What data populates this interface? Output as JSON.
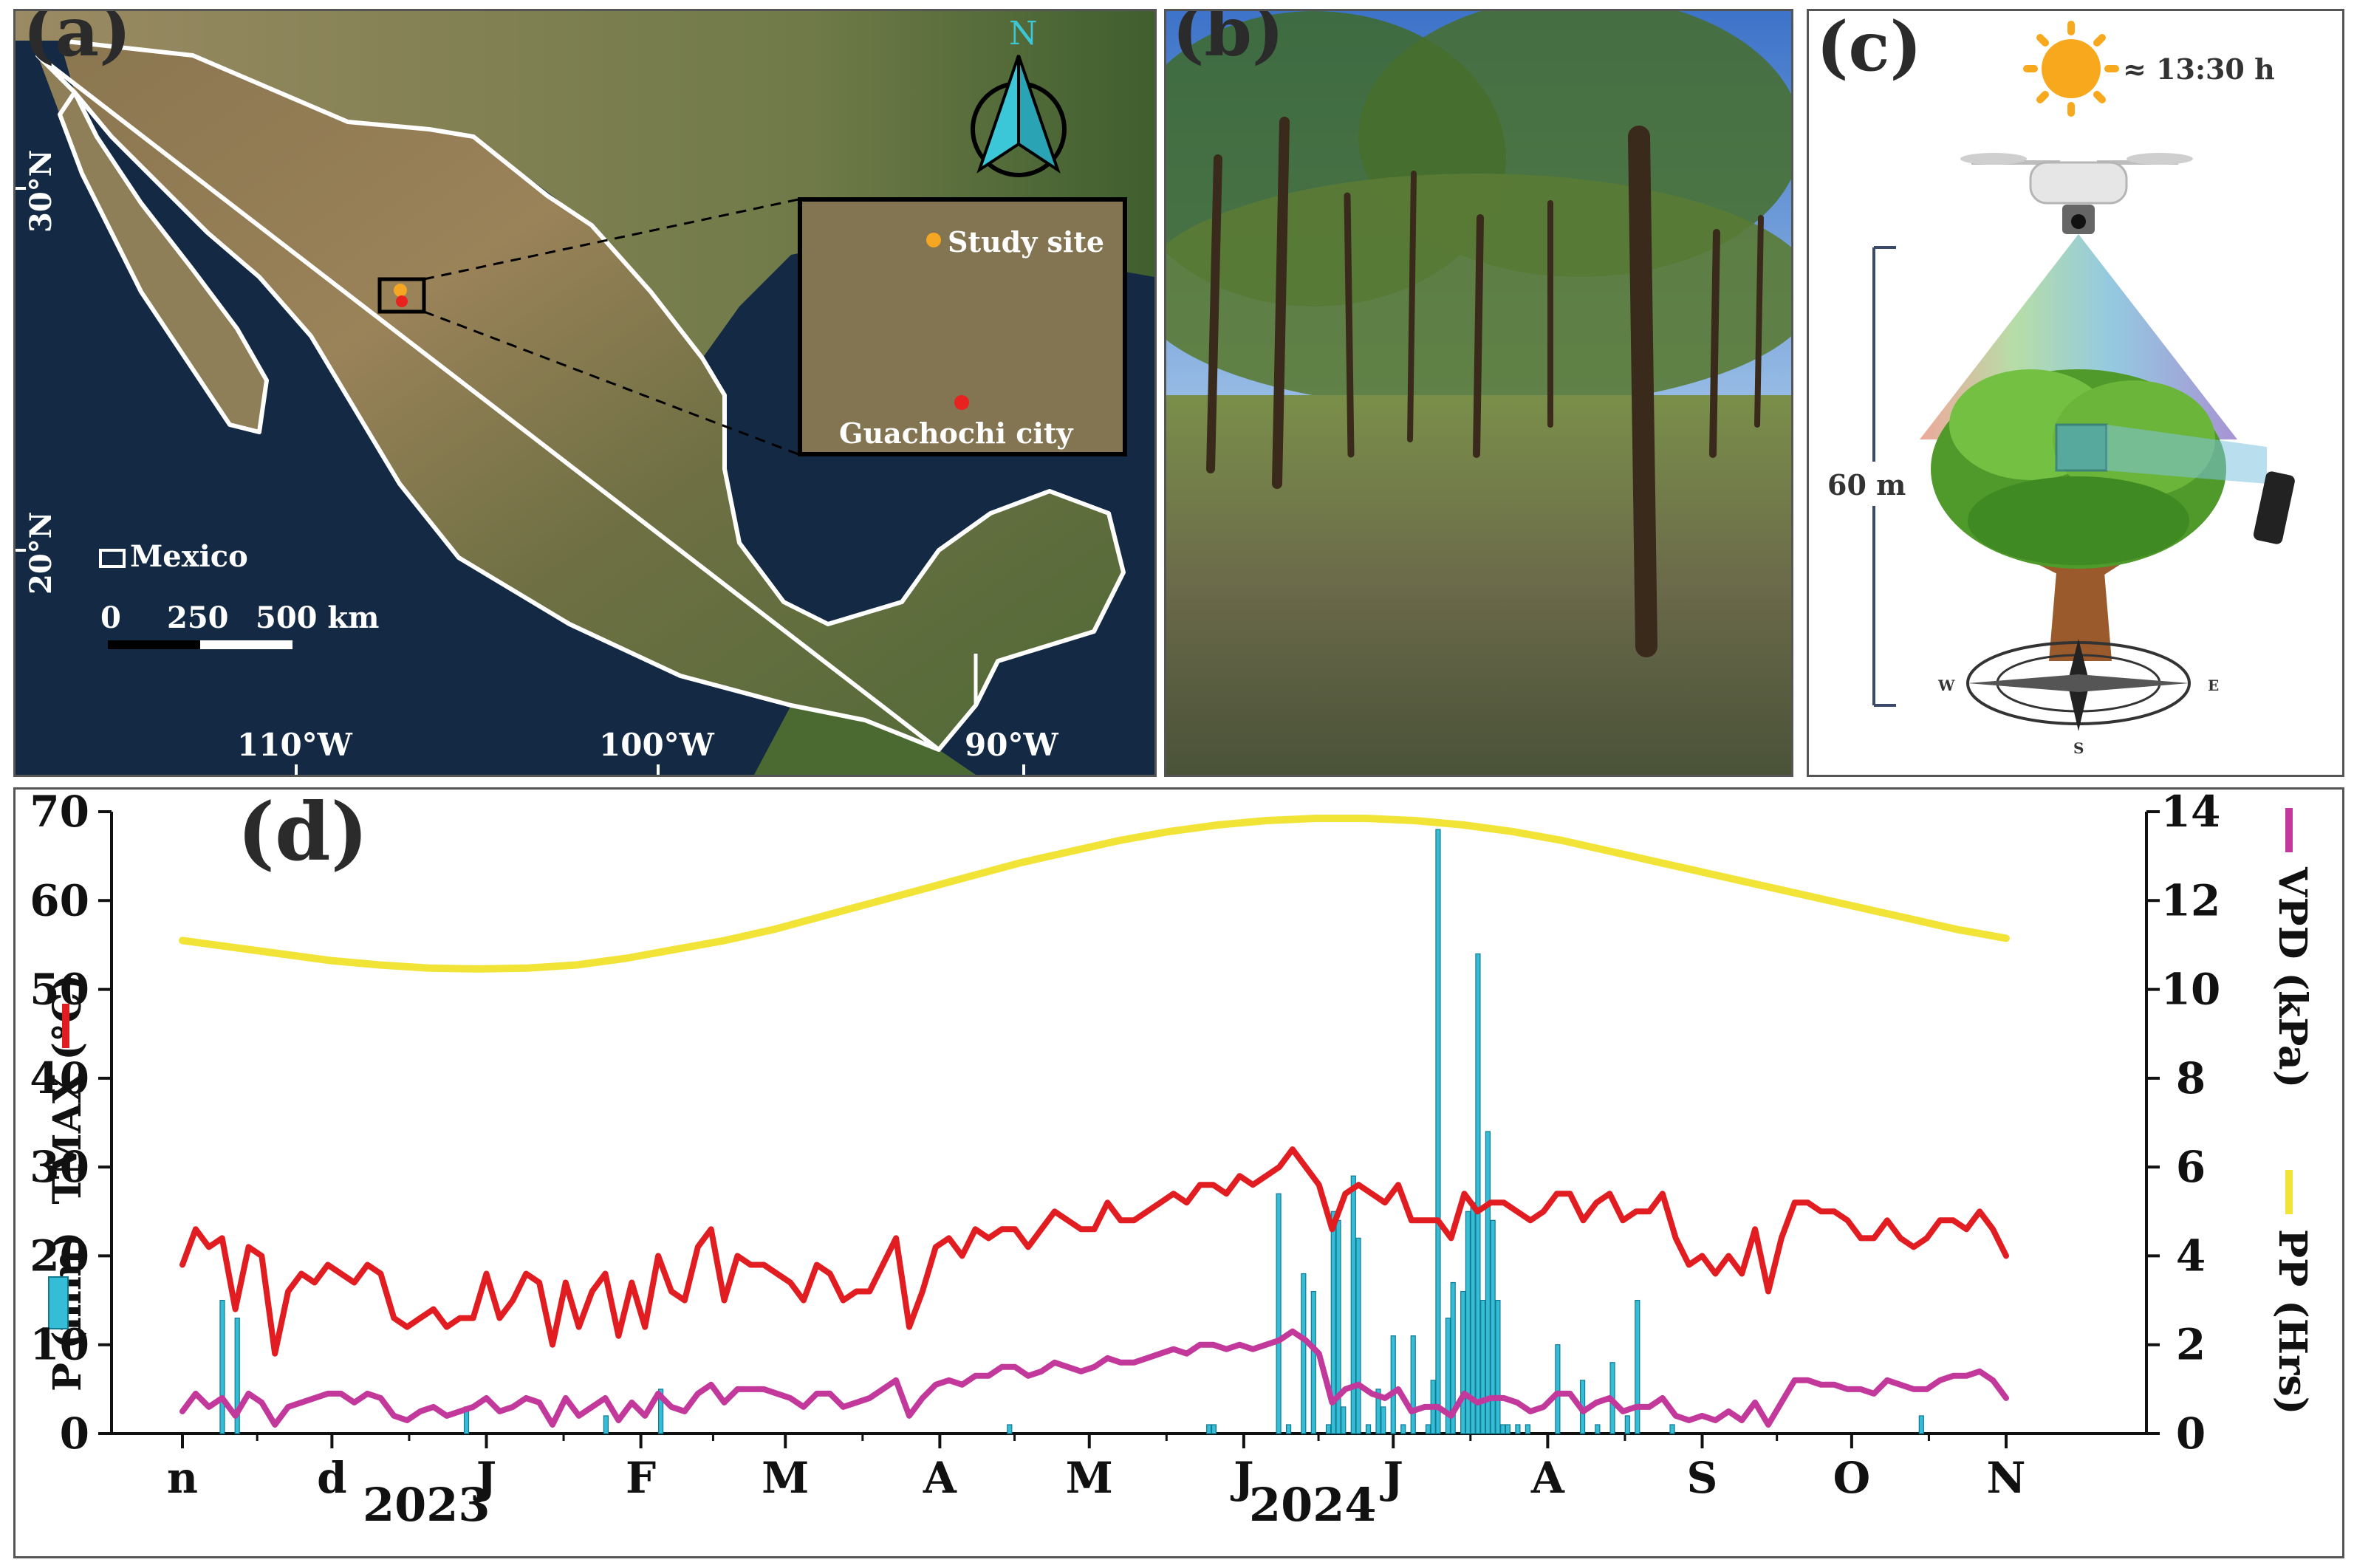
{
  "panel_a": {
    "letter": "(a)",
    "north_label": "N",
    "inset_site_label": "Study site",
    "inset_city_label": "Guachochi city",
    "legend_label": "Mexico",
    "scale_labels": [
      "0",
      "250",
      "500 km"
    ],
    "lat_labels": [
      "30°N",
      "20°N"
    ],
    "lon_labels": [
      "110°W",
      "100°W",
      "90°W"
    ],
    "colors": {
      "site": "#f5a623",
      "city": "#e8231f"
    }
  },
  "panel_b": {
    "letter": "(b)"
  },
  "panel_c": {
    "letter": "(c)",
    "time_label": "≈ 13:30 h",
    "height_label": "60 m",
    "compass": [
      "W",
      "E",
      "S"
    ]
  },
  "panel_d": {
    "letter": "(d)",
    "left_axis_label": "P (mm)",
    "left_axis_label2": "TMAX (°C)",
    "right_axis_label": "VPD (kPa)",
    "right_axis_label2": "PP (Hrs)",
    "month_labels": [
      "n",
      "d",
      "J",
      "F",
      "M",
      "A",
      "M",
      "J",
      "J",
      "A",
      "S",
      "O",
      "N"
    ],
    "year_labels": [
      "2023",
      "2024"
    ]
  },
  "chart_data": {
    "type": "line",
    "title": "",
    "x": "daily, Nov 2023 – Nov 2024",
    "x_ticks": [
      "n",
      "d",
      "J",
      "F",
      "M",
      "A",
      "M",
      "J",
      "J",
      "A",
      "S",
      "O",
      "N"
    ],
    "left_ylim": [
      0,
      70
    ],
    "left_yticks": [
      0,
      10,
      20,
      30,
      40,
      50,
      60,
      70
    ],
    "right_ylim": [
      0,
      14
    ],
    "right_yticks": [
      0,
      2,
      4,
      6,
      8,
      10,
      12,
      14
    ],
    "series": [
      {
        "name": "TMAX (°C)",
        "axis": "left",
        "color": "#e11d22",
        "values": [
          19,
          23,
          21,
          22,
          14,
          21,
          20,
          9,
          16,
          18,
          17,
          19,
          18,
          17,
          19,
          18,
          13,
          12,
          13,
          14,
          12,
          13,
          13,
          18,
          13,
          15,
          18,
          17,
          10,
          17,
          12,
          16,
          18,
          11,
          17,
          12,
          20,
          16,
          15,
          21,
          23,
          15,
          20,
          19,
          19,
          18,
          17,
          15,
          19,
          18,
          15,
          16,
          16,
          19,
          22,
          12,
          16,
          21,
          22,
          20,
          23,
          22,
          23,
          23,
          21,
          23,
          25,
          24,
          23,
          23,
          26,
          24,
          24,
          25,
          26,
          27,
          26,
          28,
          28,
          27,
          29,
          28,
          29,
          30,
          32,
          30,
          28,
          23,
          27,
          28,
          27,
          26,
          28,
          24,
          24,
          24,
          22,
          27,
          25,
          26,
          26,
          25,
          24,
          25,
          27,
          27,
          24,
          26,
          27,
          24,
          25,
          25,
          27,
          22,
          19,
          20,
          18,
          20,
          18,
          23,
          16,
          22,
          26,
          26,
          25,
          25,
          24,
          22,
          22,
          24,
          22,
          21,
          22,
          24,
          24,
          23,
          25,
          23,
          20
        ]
      },
      {
        "name": "VPD (kPa)",
        "axis": "right",
        "color": "#c2399b",
        "values": [
          0.5,
          0.9,
          0.6,
          0.8,
          0.4,
          0.9,
          0.7,
          0.2,
          0.6,
          0.7,
          0.8,
          0.9,
          0.9,
          0.7,
          0.9,
          0.8,
          0.4,
          0.3,
          0.5,
          0.6,
          0.4,
          0.5,
          0.6,
          0.8,
          0.5,
          0.6,
          0.8,
          0.7,
          0.2,
          0.8,
          0.4,
          0.6,
          0.8,
          0.3,
          0.7,
          0.4,
          0.9,
          0.6,
          0.5,
          0.9,
          1.1,
          0.7,
          1.0,
          1.0,
          1.0,
          0.9,
          0.8,
          0.6,
          0.9,
          0.9,
          0.6,
          0.7,
          0.8,
          1.0,
          1.2,
          0.4,
          0.8,
          1.1,
          1.2,
          1.1,
          1.3,
          1.3,
          1.5,
          1.5,
          1.3,
          1.4,
          1.6,
          1.5,
          1.4,
          1.5,
          1.7,
          1.6,
          1.6,
          1.7,
          1.8,
          1.9,
          1.8,
          2.0,
          2.0,
          1.9,
          2.0,
          1.9,
          2.0,
          2.1,
          2.3,
          2.1,
          1.8,
          0.7,
          1.0,
          1.1,
          0.9,
          0.8,
          1.0,
          0.5,
          0.6,
          0.6,
          0.4,
          0.9,
          0.7,
          0.8,
          0.8,
          0.7,
          0.5,
          0.6,
          0.9,
          0.9,
          0.5,
          0.7,
          0.8,
          0.5,
          0.6,
          0.6,
          0.8,
          0.4,
          0.3,
          0.4,
          0.3,
          0.5,
          0.3,
          0.7,
          0.2,
          0.7,
          1.2,
          1.2,
          1.1,
          1.1,
          1.0,
          1.0,
          0.9,
          1.2,
          1.1,
          1.0,
          1.0,
          1.2,
          1.3,
          1.3,
          1.4,
          1.2,
          0.8
        ]
      },
      {
        "name": "PP (Hrs)",
        "axis": "right",
        "color": "#f2e436",
        "values": [
          11.1,
          10.95,
          10.8,
          10.65,
          10.55,
          10.48,
          10.46,
          10.48,
          10.55,
          10.7,
          10.9,
          11.1,
          11.35,
          11.65,
          11.95,
          12.25,
          12.55,
          12.85,
          13.1,
          13.35,
          13.55,
          13.7,
          13.8,
          13.85,
          13.85,
          13.8,
          13.7,
          13.55,
          13.35,
          13.1,
          12.85,
          12.6,
          12.35,
          12.1,
          11.85,
          11.6,
          11.35,
          11.15
        ]
      },
      {
        "name": "P (mm)",
        "axis": "left",
        "type": "bar",
        "color": "#35bcd6",
        "days": [
          8,
          11,
          57,
          85,
          96,
          166,
          206,
          207,
          220,
          222,
          225,
          227,
          230,
          231,
          232,
          233,
          235,
          236,
          238,
          240,
          241,
          243,
          245,
          247,
          250,
          251,
          252,
          254,
          255,
          257,
          258,
          259,
          260,
          261,
          262,
          263,
          264,
          265,
          266,
          268,
          270,
          276,
          281,
          284,
          287,
          290,
          292,
          299,
          349
        ],
        "values": [
          15,
          13,
          3,
          2,
          5,
          1,
          1,
          1,
          27,
          1,
          18,
          16,
          1,
          25,
          24,
          3,
          29,
          22,
          1,
          5,
          3,
          11,
          1,
          11,
          1,
          6,
          68,
          13,
          17,
          16,
          25,
          26,
          54,
          15,
          34,
          24,
          15,
          1,
          1,
          1,
          1,
          10,
          6,
          1,
          8,
          2,
          15,
          1,
          2
        ]
      }
    ]
  }
}
